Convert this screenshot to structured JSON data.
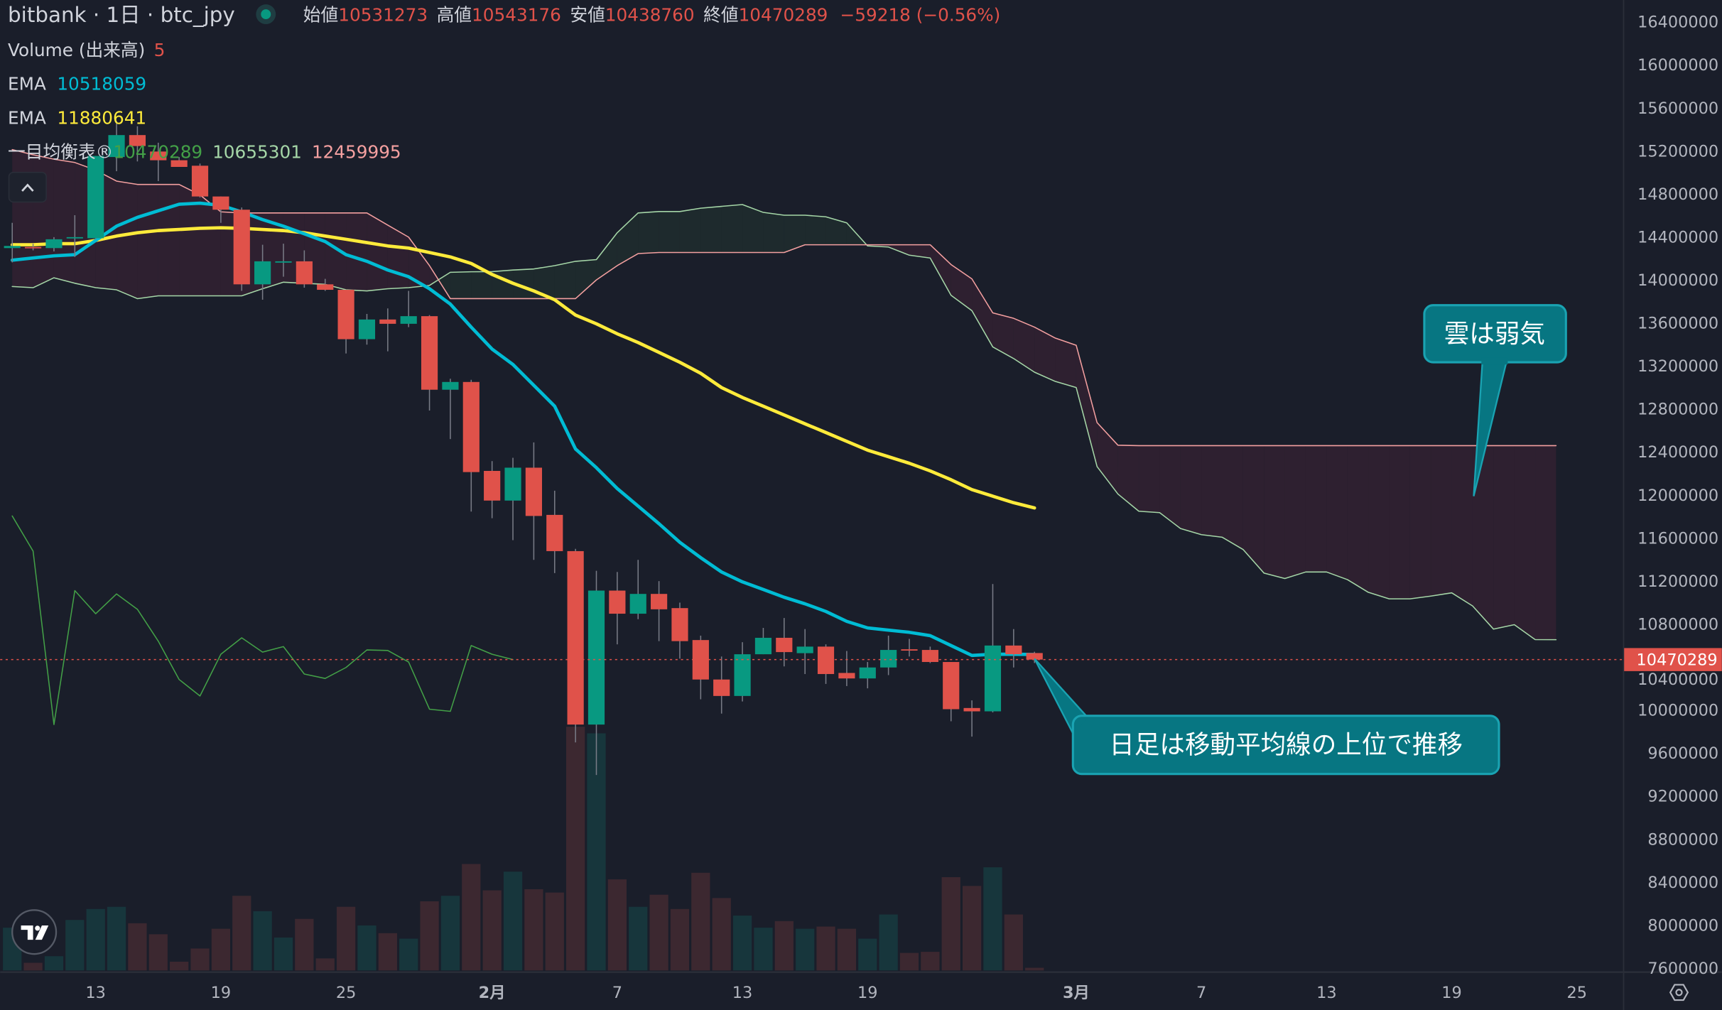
{
  "header": {
    "symbol": "bitbank · 1日 · btc_jpy",
    "open_label": "始値",
    "open": "10531273",
    "high_label": "高値",
    "high": "10543176",
    "low_label": "安値",
    "low": "10438760",
    "close_label": "終値",
    "close": "10470289",
    "change": "−59218 (−0.56%)",
    "market_status": "open"
  },
  "legend": {
    "volume_label": "Volume (出来高)",
    "volume_value": "5",
    "ema1_label": "EMA",
    "ema1_value": "10518059",
    "ema2_label": "EMA",
    "ema2_value": "11880641",
    "ichimoku_label": "一目均衡表®",
    "ichimoku_values": [
      "10470289",
      "10655301",
      "12459995"
    ]
  },
  "colors": {
    "background": "#1a1e2a",
    "up": "#089981",
    "down": "#e0524a",
    "volume_up": "#17363c",
    "volume_down": "#3c2830",
    "ema_short": "#00bcd4",
    "ema_long": "#ffeb3b",
    "lagging_span": "#43a047",
    "leading_span_a": "#a5d6a7",
    "leading_span_b": "#f4a0a0",
    "cloud_bull": "#1e2a2d",
    "cloud_bear": "#2e2030",
    "callout_fill": "#077682",
    "callout_border": "#1aa3b2",
    "status_dot": "#089981"
  },
  "price_axis": {
    "labels": [
      "16400000",
      "16000000",
      "15600000",
      "15200000",
      "14800000",
      "14400000",
      "14000000",
      "13600000",
      "13200000",
      "12800000",
      "12400000",
      "12000000",
      "11600000",
      "11200000",
      "10800000",
      "10400000",
      "10000000",
      "9600000",
      "9200000",
      "8800000",
      "8400000",
      "8000000",
      "7600000"
    ],
    "last_price": "10470289"
  },
  "annotations": [
    {
      "text": "雲は弱気"
    },
    {
      "text": "日足は移動平均線の上位で推移"
    }
  ],
  "chart_data": {
    "type": "candlestick",
    "title": "bitbank · 1日 · btc_jpy",
    "ylim": [
      7600000,
      16400000
    ],
    "x_ticks": [
      {
        "label": "13",
        "date": "1/13"
      },
      {
        "label": "19",
        "date": "1/19"
      },
      {
        "label": "25",
        "date": "1/25"
      },
      {
        "label": "2月",
        "date": "2/1"
      },
      {
        "label": "7",
        "date": "2/7"
      },
      {
        "label": "13",
        "date": "2/13"
      },
      {
        "label": "19",
        "date": "2/19"
      },
      {
        "label": "3月",
        "date": "3/1"
      },
      {
        "label": "7",
        "date": "3/7"
      },
      {
        "label": "13",
        "date": "3/13"
      },
      {
        "label": "19",
        "date": "3/19"
      },
      {
        "label": "25",
        "date": "3/25"
      }
    ],
    "candle_fields": [
      "date",
      "open",
      "high",
      "low",
      "close",
      "volume"
    ],
    "candles": [
      [
        "1/9",
        14297000,
        14532000,
        14164000,
        14317000,
        78
      ],
      [
        "1/10",
        14307000,
        14338000,
        14276000,
        14297000,
        14
      ],
      [
        "1/11",
        14297000,
        14399000,
        14266000,
        14379000,
        26
      ],
      [
        "1/12",
        14389000,
        14603000,
        14215000,
        14399000,
        92
      ],
      [
        "1/13",
        14389000,
        15154000,
        14379000,
        15154000,
        112
      ],
      [
        "1/14",
        15144000,
        15481000,
        15012000,
        15348000,
        116
      ],
      [
        "1/15",
        15348000,
        15430000,
        15103000,
        15246000,
        86
      ],
      [
        "1/16",
        15195000,
        15277000,
        14920000,
        15114000,
        66
      ],
      [
        "1/17",
        15114000,
        15144000,
        15052000,
        15052000,
        16
      ],
      [
        "1/18",
        15063000,
        15083000,
        14767000,
        14777000,
        40
      ],
      [
        "1/19",
        14777000,
        14777000,
        14532000,
        14654000,
        76
      ],
      [
        "1/20",
        14654000,
        14675000,
        13899000,
        13960000,
        136
      ],
      [
        "1/21",
        13960000,
        14328000,
        13817000,
        14174000,
        108
      ],
      [
        "1/22",
        14164000,
        14338000,
        14031000,
        14174000,
        60
      ],
      [
        "1/23",
        14174000,
        14276000,
        13929000,
        13960000,
        94
      ],
      [
        "1/24",
        13960000,
        14011000,
        13899000,
        13909000,
        22
      ],
      [
        "1/25",
        13909000,
        13909000,
        13317000,
        13450000,
        116
      ],
      [
        "1/26",
        13450000,
        13685000,
        13399000,
        13633000,
        82
      ],
      [
        "1/27",
        13633000,
        13736000,
        13337000,
        13593000,
        68
      ],
      [
        "1/28",
        13593000,
        13899000,
        13562000,
        13664000,
        58
      ],
      [
        "1/29",
        13664000,
        13674000,
        12786000,
        12980000,
        126
      ],
      [
        "1/30",
        12980000,
        13082000,
        12521000,
        13052000,
        136
      ],
      [
        "1/31",
        13052000,
        13072000,
        11847000,
        12214000,
        194
      ],
      [
        "2/1",
        12225000,
        12316000,
        11785000,
        11949000,
        146
      ],
      [
        "2/2",
        11949000,
        12347000,
        11581000,
        12255000,
        180
      ],
      [
        "2/3",
        12255000,
        12490000,
        11398000,
        11806000,
        148
      ],
      [
        "2/4",
        11816000,
        12041000,
        11275000,
        11479000,
        142
      ],
      [
        "2/5",
        11479000,
        11500000,
        9700000,
        9866000,
        444
      ],
      [
        "2/6",
        9866000,
        11296000,
        9397000,
        11112000,
        432
      ],
      [
        "2/7",
        11112000,
        11285000,
        10612000,
        10897000,
        166
      ],
      [
        "2/8",
        10897000,
        11398000,
        10846000,
        11081000,
        116
      ],
      [
        "2/9",
        11081000,
        11200000,
        10642000,
        10938000,
        138
      ],
      [
        "2/10",
        10949000,
        11000000,
        10479000,
        10642000,
        112
      ],
      [
        "2/11",
        10652000,
        10693000,
        10101000,
        10285000,
        178
      ],
      [
        "2/12",
        10285000,
        10499000,
        9968000,
        10132000,
        132
      ],
      [
        "2/13",
        10132000,
        10632000,
        10081000,
        10520000,
        100
      ],
      [
        "2/14",
        10520000,
        10765000,
        10520000,
        10673000,
        78
      ],
      [
        "2/15",
        10673000,
        10857000,
        10407000,
        10540000,
        90
      ],
      [
        "2/16",
        10530000,
        10754000,
        10336000,
        10591000,
        76
      ],
      [
        "2/17",
        10591000,
        10612000,
        10244000,
        10336000,
        80
      ],
      [
        "2/18",
        10346000,
        10550000,
        10224000,
        10295000,
        76
      ],
      [
        "2/19",
        10295000,
        10448000,
        10203000,
        10397000,
        58
      ],
      [
        "2/20",
        10397000,
        10693000,
        10326000,
        10560000,
        102
      ],
      [
        "2/21",
        10566000,
        10663000,
        10499000,
        10555000,
        32
      ],
      [
        "2/22",
        10560000,
        10591000,
        10438000,
        10448000,
        34
      ],
      [
        "2/23",
        10448000,
        10448000,
        9897000,
        10009000,
        170
      ],
      [
        "2/24",
        10020000,
        10091000,
        9754000,
        9989000,
        154
      ],
      [
        "2/25",
        9989000,
        11173000,
        9979000,
        10601000,
        188
      ],
      [
        "2/26",
        10601000,
        10754000,
        10397000,
        10520000,
        102
      ],
      [
        "2/27",
        10531273,
        10543176,
        10438760,
        10470289,
        5
      ]
    ],
    "ema_short": [
      14185000,
      14205000,
      14225000,
      14236000,
      14368000,
      14501000,
      14583000,
      14644000,
      14705000,
      14715000,
      14695000,
      14634000,
      14562000,
      14501000,
      14430000,
      14358000,
      14236000,
      14174000,
      14093000,
      14031000,
      13919000,
      13776000,
      13562000,
      13358000,
      13215000,
      13021000,
      12827000,
      12429000,
      12255000,
      12061000,
      11898000,
      11734000,
      11561000,
      11418000,
      11285000,
      11193000,
      11122000,
      11050000,
      10989000,
      10918000,
      10826000,
      10765000,
      10744000,
      10724000,
      10693000,
      10601000,
      10509000,
      10520000,
      10520000,
      10518059
    ],
    "ema_long": [
      14328000,
      14328000,
      14338000,
      14338000,
      14368000,
      14409000,
      14440000,
      14460000,
      14470000,
      14481000,
      14486000,
      14481000,
      14470000,
      14460000,
      14440000,
      14409000,
      14379000,
      14348000,
      14317000,
      14297000,
      14256000,
      14215000,
      14154000,
      14052000,
      13970000,
      13899000,
      13817000,
      13674000,
      13593000,
      13500000,
      13419000,
      13327000,
      13235000,
      13133000,
      13000000,
      12908000,
      12827000,
      12745000,
      12663000,
      12582000,
      12500000,
      12418000,
      12357000,
      12296000,
      12225000,
      12143000,
      12051000,
      11990000,
      11929000,
      11880641
    ],
    "lagging_span_shift": 25,
    "cloud_fields": [
      "date",
      "leading_span_a",
      "leading_span_b"
    ],
    "cloud": [
      [
        "1/9",
        13940000,
        15213000
      ],
      [
        "1/10",
        13929000,
        15165000
      ],
      [
        "1/11",
        14021000,
        15124000
      ],
      [
        "1/12",
        13970000,
        15093000
      ],
      [
        "1/13",
        13929000,
        15022000
      ],
      [
        "1/14",
        13909000,
        14920000
      ],
      [
        "1/15",
        13827000,
        14889000
      ],
      [
        "1/16",
        13853000,
        14889000
      ],
      [
        "1/17",
        13853000,
        14889000
      ],
      [
        "1/18",
        13853000,
        14792000
      ],
      [
        "1/19",
        13853000,
        14634000
      ],
      [
        "1/20",
        13853000,
        14624000
      ],
      [
        "1/21",
        13919000,
        14624000
      ],
      [
        "1/22",
        13980000,
        14624000
      ],
      [
        "1/23",
        13970000,
        14624000
      ],
      [
        "1/24",
        13960000,
        14624000
      ],
      [
        "1/25",
        13909000,
        14624000
      ],
      [
        "1/26",
        13899000,
        14624000
      ],
      [
        "1/27",
        13919000,
        14511000
      ],
      [
        "1/28",
        13929000,
        14399000
      ],
      [
        "1/29",
        13950000,
        14134000
      ],
      [
        "1/30",
        14072000,
        13827000
      ],
      [
        "1/31",
        14077000,
        13827000
      ],
      [
        "2/1",
        14078000,
        13827000
      ],
      [
        "2/2",
        14093000,
        13827000
      ],
      [
        "2/3",
        14103000,
        13827000
      ],
      [
        "2/4",
        14134000,
        13827000
      ],
      [
        "2/5",
        14174000,
        13827000
      ],
      [
        "2/6",
        14190000,
        14001000
      ],
      [
        "2/7",
        14440000,
        14134000
      ],
      [
        "2/8",
        14624000,
        14246000
      ],
      [
        "2/9",
        14637000,
        14256000
      ],
      [
        "2/10",
        14637000,
        14256000
      ],
      [
        "2/11",
        14668000,
        14256000
      ],
      [
        "2/12",
        14685000,
        14256000
      ],
      [
        "2/13",
        14702000,
        14256000
      ],
      [
        "2/14",
        14629000,
        14256000
      ],
      [
        "2/15",
        14603000,
        14256000
      ],
      [
        "2/16",
        14603000,
        14328000
      ],
      [
        "2/17",
        14588000,
        14328000
      ],
      [
        "2/18",
        14532000,
        14328000
      ],
      [
        "2/19",
        14317000,
        14328000
      ],
      [
        "2/20",
        14307000,
        14328000
      ],
      [
        "2/21",
        14231000,
        14328000
      ],
      [
        "2/22",
        14205000,
        14328000
      ],
      [
        "2/23",
        13858000,
        14144000
      ],
      [
        "2/24",
        13715000,
        14011000
      ],
      [
        "2/25",
        13378000,
        13695000
      ],
      [
        "2/26",
        13270000,
        13644000
      ],
      [
        "2/27",
        13143000,
        13562000
      ],
      [
        "2/28",
        13057000,
        13460000
      ],
      [
        "3/1",
        13000000,
        13393000
      ],
      [
        "3/2",
        12265000,
        12674000
      ],
      [
        "3/3",
        12010000,
        12464000
      ],
      [
        "3/4",
        11850000,
        12459995
      ],
      [
        "3/5",
        11837000,
        12459995
      ],
      [
        "3/6",
        11689000,
        12459995
      ],
      [
        "3/7",
        11632000,
        12459995
      ],
      [
        "3/8",
        11608000,
        12459995
      ],
      [
        "3/9",
        11494000,
        12459995
      ],
      [
        "3/10",
        11275000,
        12459995
      ],
      [
        "3/11",
        11224000,
        12459995
      ],
      [
        "3/12",
        11285000,
        12459995
      ],
      [
        "3/13",
        11285000,
        12459995
      ],
      [
        "3/14",
        11214000,
        12459995
      ],
      [
        "3/15",
        11096000,
        12459995
      ],
      [
        "3/16",
        11035000,
        12459995
      ],
      [
        "3/17",
        11035000,
        12459995
      ],
      [
        "3/18",
        11061000,
        12459995
      ],
      [
        "3/19",
        11091000,
        12459995
      ],
      [
        "3/20",
        10969000,
        12459995
      ],
      [
        "3/21",
        10754000,
        12459995
      ],
      [
        "3/22",
        10795000,
        12459995
      ],
      [
        "3/23",
        10656000,
        12459995
      ],
      [
        "3/24",
        10655301,
        12459995
      ]
    ],
    "grid": false,
    "legend": "top-left"
  }
}
